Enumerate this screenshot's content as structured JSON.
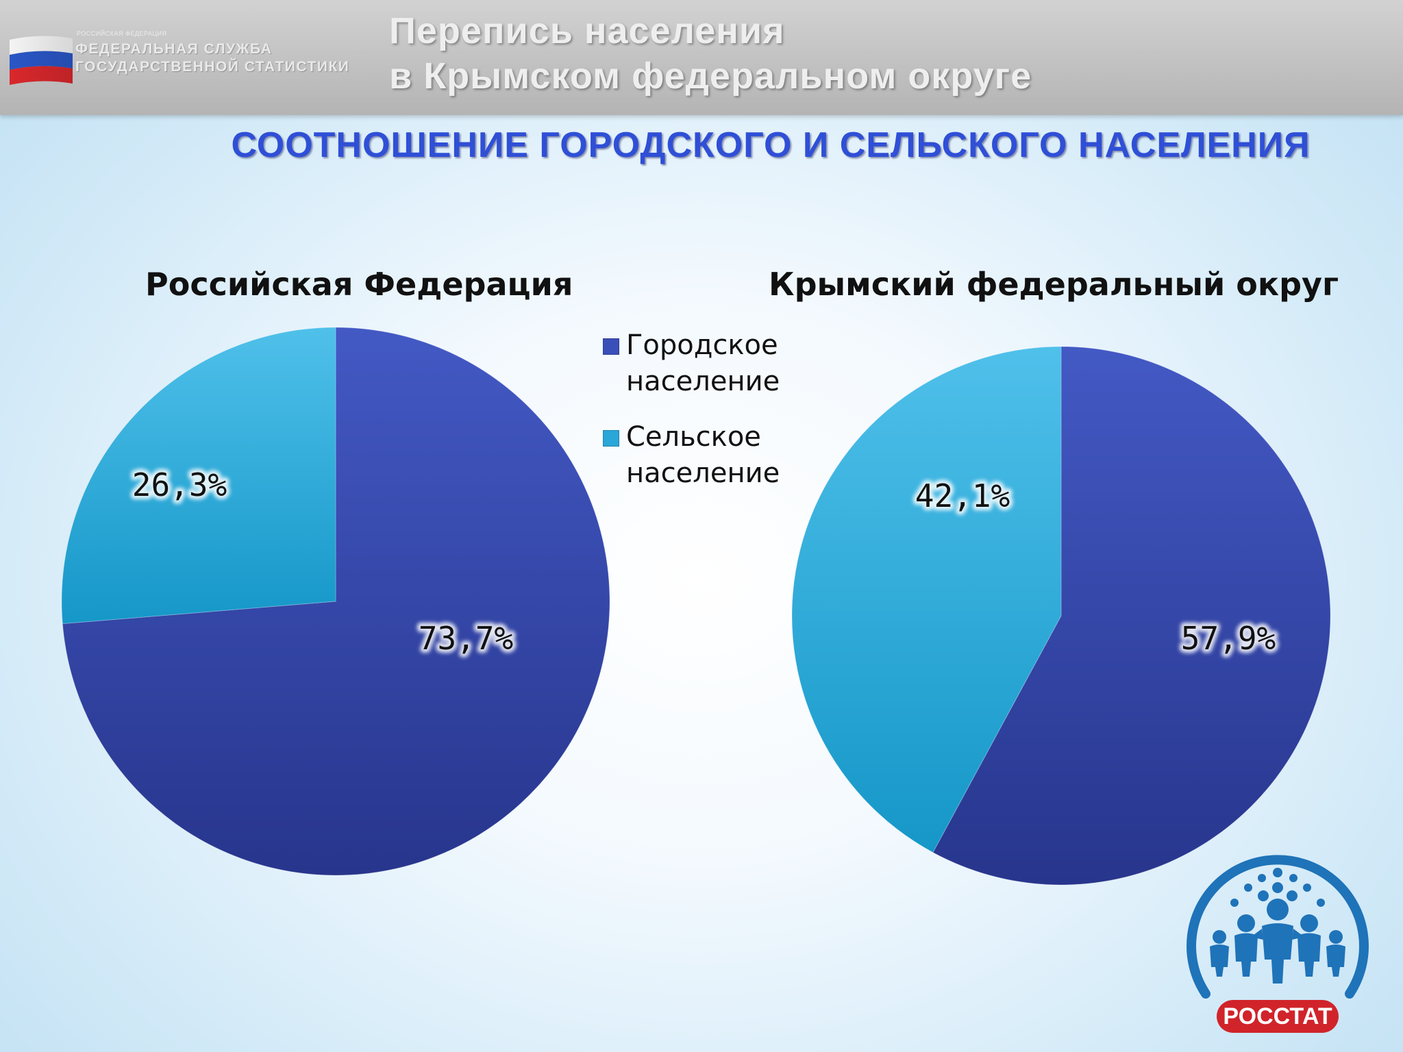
{
  "header": {
    "org_small": "РОССИЙСКАЯ ФЕДЕРАЦИЯ",
    "org_line1": "ФЕДЕРАЛЬНАЯ СЛУЖБА",
    "org_line2": "ГОСУДАРСТВЕННОЙ СТАТИСТИКИ",
    "title_line1": "Перепись населения",
    "title_line2": "в Крымском федеральном округе"
  },
  "main_title": "СООТНОШЕНИЕ ГОРОДСКОГО И СЕЛЬСКОГО НАСЕЛЕНИЯ",
  "logo_text": "РОССТАТ",
  "colors": {
    "urban": "#3a4fb8",
    "rural": "#2aa6d8",
    "title": "#2f4fd6",
    "logo_blue": "#1f73b8",
    "logo_red": "#d0242a"
  },
  "chart_data": [
    {
      "type": "pie",
      "title": "Российская Федерация",
      "categories": [
        "Городское население",
        "Сельское население"
      ],
      "values": [
        73.7,
        26.3
      ],
      "labels": [
        "73,7%",
        "26,3%"
      ],
      "legend": "center"
    },
    {
      "type": "pie",
      "title": "Крымский федеральный округ",
      "categories": [
        "Городское население",
        "Сельское население"
      ],
      "values": [
        57.9,
        42.1
      ],
      "labels": [
        "57,9%",
        "42,1%"
      ],
      "legend": "center"
    }
  ]
}
